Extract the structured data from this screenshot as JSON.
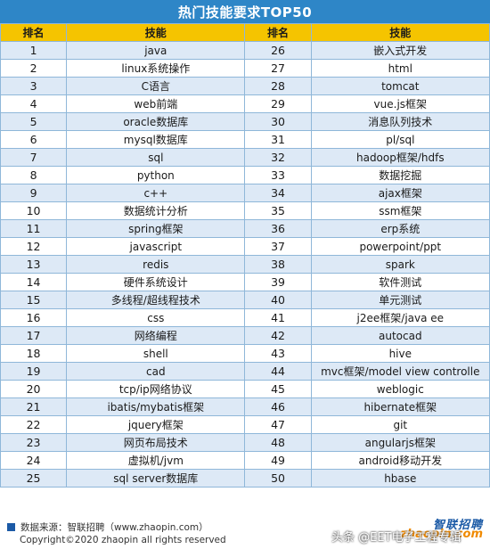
{
  "title": "热门技能要求TOP50",
  "headers": {
    "rank": "排名",
    "skill": "技能"
  },
  "skills": [
    {
      "rank": "1",
      "name": "java"
    },
    {
      "rank": "2",
      "name": "linux系统操作"
    },
    {
      "rank": "3",
      "name": "C语言"
    },
    {
      "rank": "4",
      "name": "web前端"
    },
    {
      "rank": "5",
      "name": "oracle数据库"
    },
    {
      "rank": "6",
      "name": "mysql数据库"
    },
    {
      "rank": "7",
      "name": "sql"
    },
    {
      "rank": "8",
      "name": "python"
    },
    {
      "rank": "9",
      "name": "c++"
    },
    {
      "rank": "10",
      "name": "数据统计分析"
    },
    {
      "rank": "11",
      "name": "spring框架"
    },
    {
      "rank": "12",
      "name": "javascript"
    },
    {
      "rank": "13",
      "name": "redis"
    },
    {
      "rank": "14",
      "name": "硬件系统设计"
    },
    {
      "rank": "15",
      "name": "多线程/超线程技术"
    },
    {
      "rank": "16",
      "name": "css"
    },
    {
      "rank": "17",
      "name": "网络编程"
    },
    {
      "rank": "18",
      "name": "shell"
    },
    {
      "rank": "19",
      "name": "cad"
    },
    {
      "rank": "20",
      "name": "tcp/ip网络协议"
    },
    {
      "rank": "21",
      "name": "ibatis/mybatis框架"
    },
    {
      "rank": "22",
      "name": "jquery框架"
    },
    {
      "rank": "23",
      "name": "网页布局技术"
    },
    {
      "rank": "24",
      "name": "虚拟机/jvm"
    },
    {
      "rank": "25",
      "name": "sql server数据库"
    },
    {
      "rank": "26",
      "name": "嵌入式开发"
    },
    {
      "rank": "27",
      "name": "html"
    },
    {
      "rank": "28",
      "name": "tomcat"
    },
    {
      "rank": "29",
      "name": "vue.js框架"
    },
    {
      "rank": "30",
      "name": "消息队列技术"
    },
    {
      "rank": "31",
      "name": "pl/sql"
    },
    {
      "rank": "32",
      "name": "hadoop框架/hdfs"
    },
    {
      "rank": "33",
      "name": "数据挖掘"
    },
    {
      "rank": "34",
      "name": "ajax框架"
    },
    {
      "rank": "35",
      "name": "ssm框架"
    },
    {
      "rank": "36",
      "name": "erp系统"
    },
    {
      "rank": "37",
      "name": "powerpoint/ppt"
    },
    {
      "rank": "38",
      "name": "spark"
    },
    {
      "rank": "39",
      "name": "软件测试"
    },
    {
      "rank": "40",
      "name": "单元测试"
    },
    {
      "rank": "41",
      "name": "j2ee框架/java ee"
    },
    {
      "rank": "42",
      "name": "autocad"
    },
    {
      "rank": "43",
      "name": "hive"
    },
    {
      "rank": "44",
      "name": "mvc框架/model view controlle"
    },
    {
      "rank": "45",
      "name": "weblogic"
    },
    {
      "rank": "46",
      "name": "hibernate框架"
    },
    {
      "rank": "47",
      "name": "git"
    },
    {
      "rank": "48",
      "name": "angularjs框架"
    },
    {
      "rank": "49",
      "name": "android移动开发"
    },
    {
      "rank": "50",
      "name": "hbase"
    }
  ],
  "footer": {
    "source": "数据来源：智联招聘（www.zhaopin.com）",
    "copyright": "Copyright©2020 zhaopin all rights reserved",
    "logo_cn": "智联招聘",
    "logo_en": "zhaopin.com",
    "watermark": "头条 @EET电子工程专辑"
  },
  "colors": {
    "title_bg": "#2e86c7",
    "header_bg": "#f5c400",
    "row_alt": "#dde9f6",
    "brand_blue": "#1b5aa6",
    "brand_orange": "#f08a00"
  }
}
